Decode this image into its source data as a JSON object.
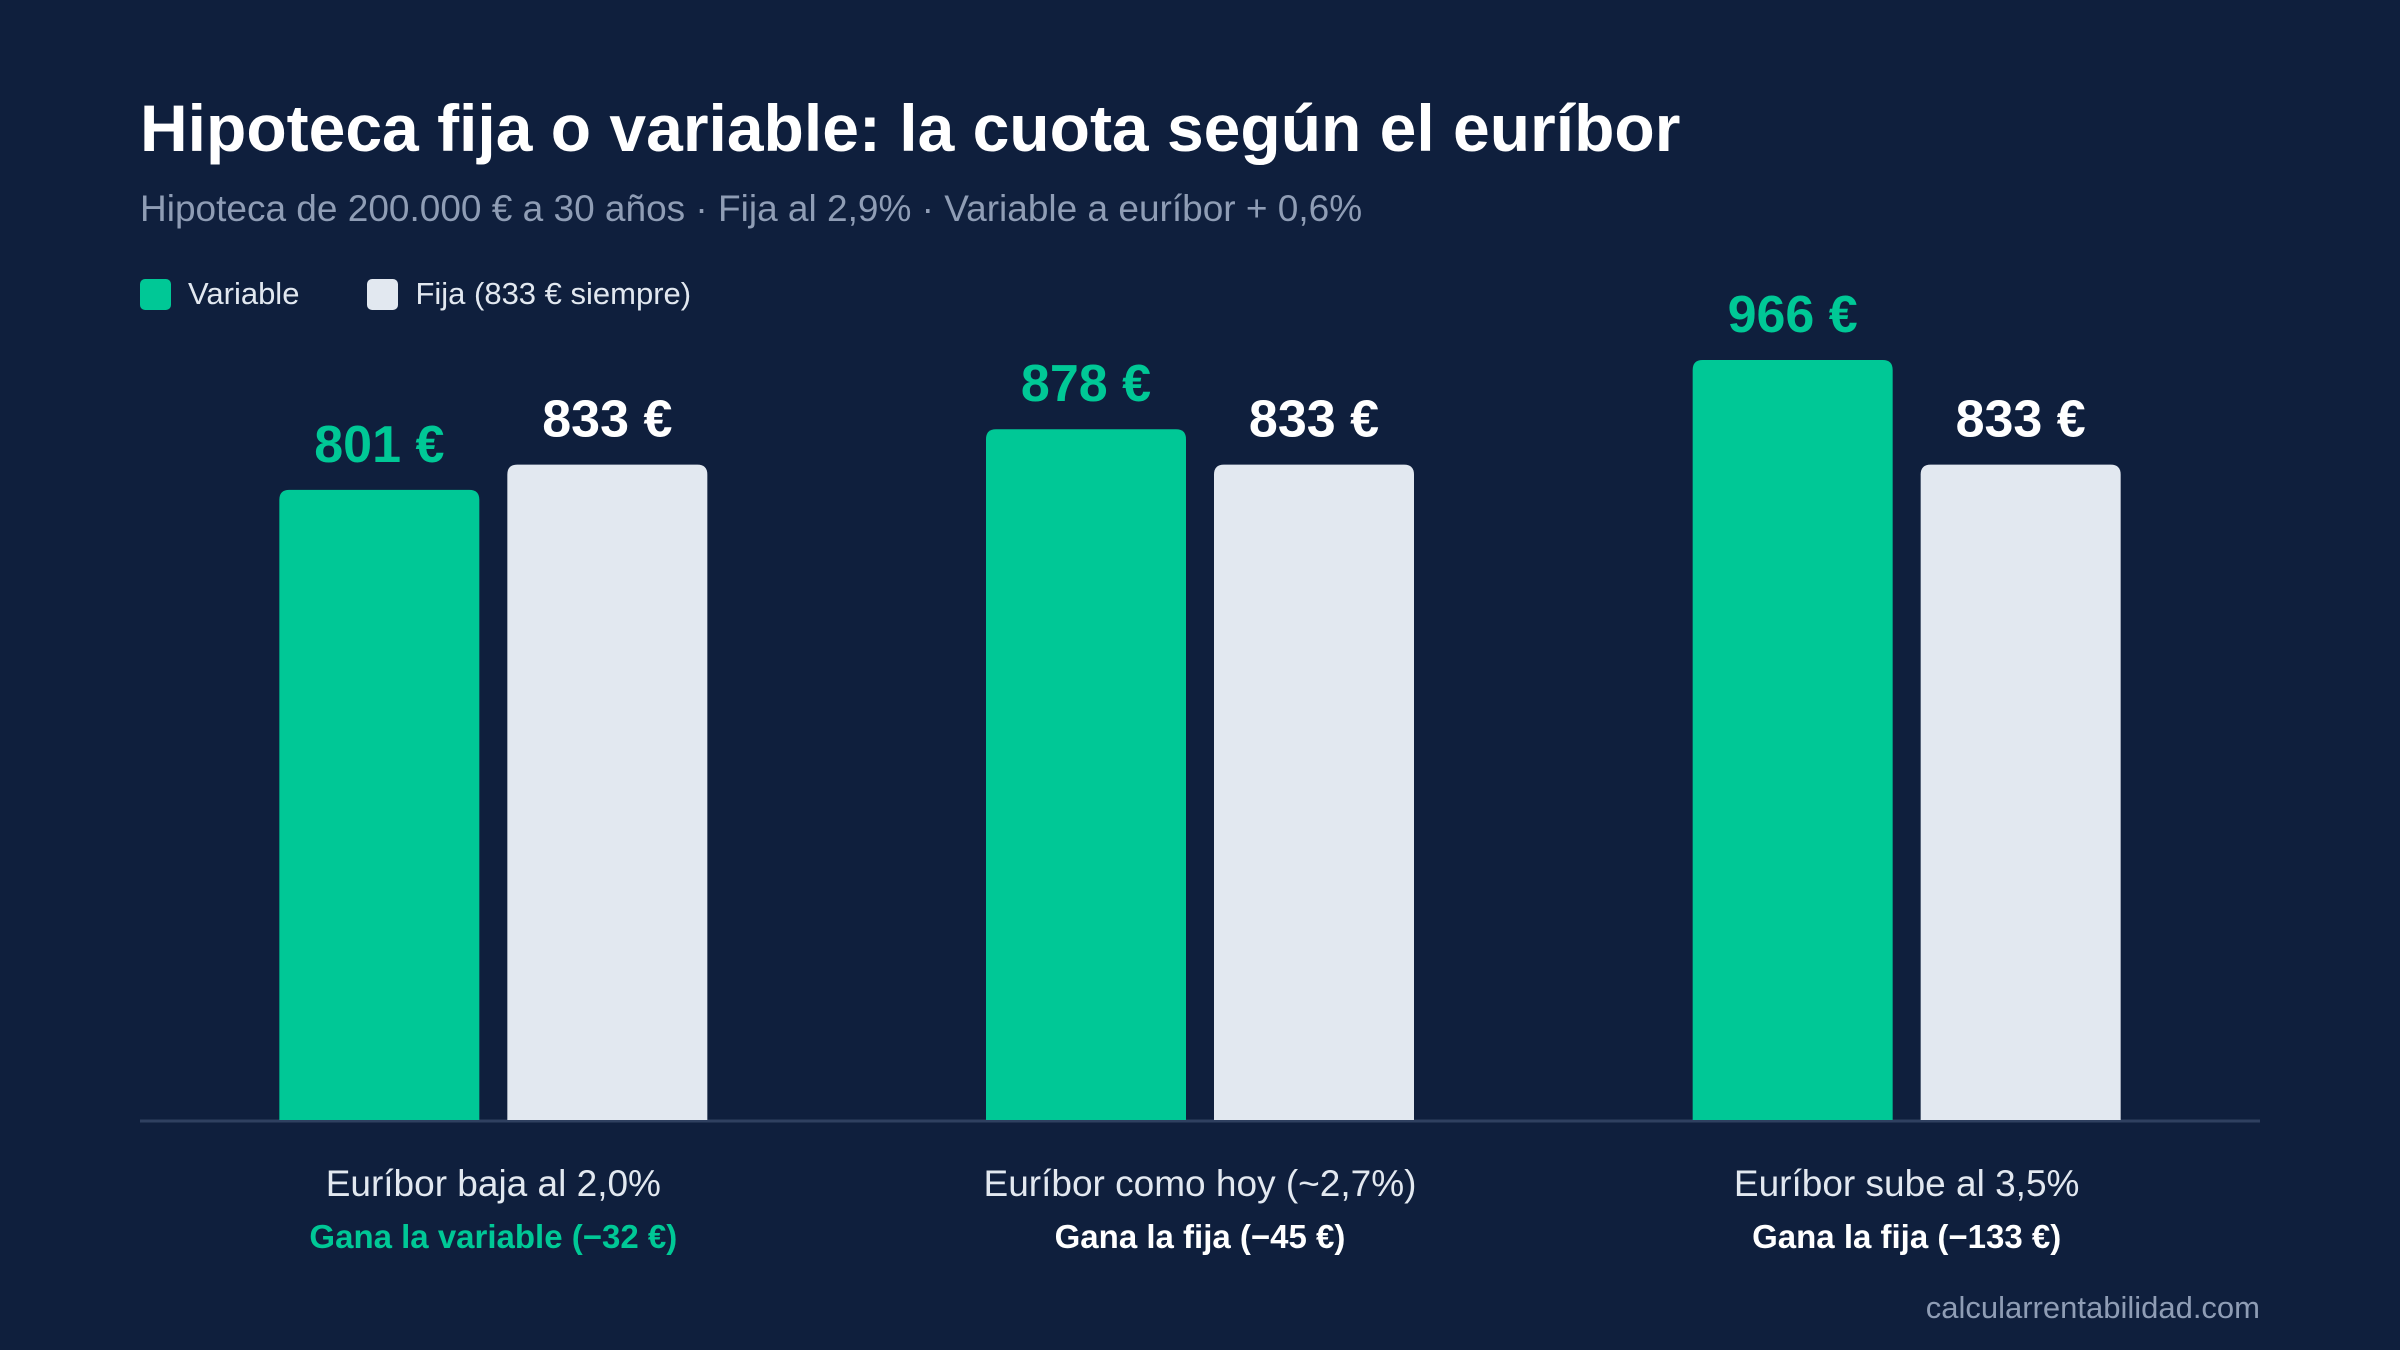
{
  "title": "Hipoteca fija o variable: la cuota según el euríbor",
  "subtitle": "Hipoteca de 200.000 € a 30 años · Fija al 2,9% · Variable a euríbor + 0,6%",
  "legend": [
    {
      "label": "Variable",
      "color": "#00c896"
    },
    {
      "label": "Fija (833 € siempre)",
      "color": "#e2e8f0"
    }
  ],
  "source": "calcularrentabilidad.com",
  "colors": {
    "background": "#0f1f3d",
    "variable": "#00c896",
    "fija": "#e2e8f0",
    "axis": "#2f4060",
    "category_label": "#e2e8f0",
    "subtitle": "#8f9db5"
  },
  "chart_data": {
    "type": "bar",
    "categories": [
      "Euríbor baja al 2,0%",
      "Euríbor como hoy (~2,7%)",
      "Euríbor sube al 3,5%"
    ],
    "series": [
      {
        "name": "Variable",
        "values": [
          801,
          878,
          966
        ],
        "labels": [
          "801 €",
          "878 €",
          "966 €"
        ]
      },
      {
        "name": "Fija (833 € siempre)",
        "values": [
          833,
          833,
          833
        ],
        "labels": [
          "833 €",
          "833 €",
          "833 €"
        ]
      }
    ],
    "verdicts": [
      {
        "text": "Gana la variable (−32 €)",
        "winner": "variable"
      },
      {
        "text": "Gana la fija (−45 €)",
        "winner": "fija"
      },
      {
        "text": "Gana la fija (−133 €)",
        "winner": "fija"
      }
    ],
    "ylim": [
      0,
      966
    ],
    "grid": false,
    "legend_position": "top-left"
  }
}
